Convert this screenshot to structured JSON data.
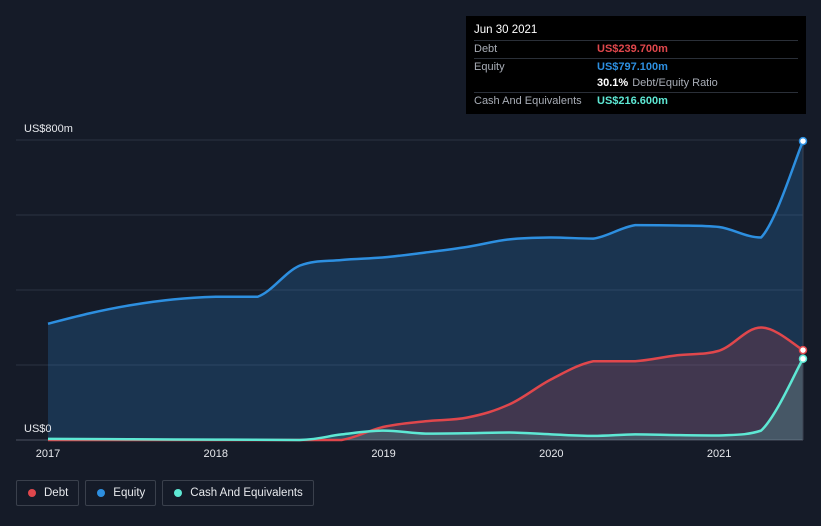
{
  "chart_data": {
    "type": "area",
    "y_unit_labels": {
      "top": "US$800m",
      "bottom": "US$0"
    },
    "ylim": [
      0,
      800
    ],
    "xlim": [
      2017,
      2021.5
    ],
    "x_ticks": [
      "2017",
      "2018",
      "2019",
      "2020",
      "2021"
    ],
    "x_tick_values": [
      2017,
      2018,
      2019,
      2020,
      2021
    ],
    "series": [
      {
        "name": "Equity",
        "color": "#2d8fe0",
        "points": [
          [
            2017,
            310
          ],
          [
            2017.25,
            338
          ],
          [
            2017.5,
            360
          ],
          [
            2017.75,
            375
          ],
          [
            2018,
            382
          ],
          [
            2018.25,
            382
          ],
          [
            2018.5,
            465
          ],
          [
            2018.75,
            480
          ],
          [
            2019,
            487
          ],
          [
            2019.25,
            500
          ],
          [
            2019.5,
            515
          ],
          [
            2019.75,
            535
          ],
          [
            2020,
            540
          ],
          [
            2020.25,
            537
          ],
          [
            2020.5,
            573
          ],
          [
            2020.75,
            572
          ],
          [
            2021,
            568
          ],
          [
            2021.25,
            540
          ],
          [
            2021.5,
            797.1
          ]
        ]
      },
      {
        "name": "Debt",
        "color": "#e0474c",
        "points": [
          [
            2017,
            0
          ],
          [
            2018,
            0
          ],
          [
            2018.5,
            0
          ],
          [
            2018.75,
            0
          ],
          [
            2019,
            35
          ],
          [
            2019.25,
            50
          ],
          [
            2019.5,
            60
          ],
          [
            2019.75,
            95
          ],
          [
            2020,
            162
          ],
          [
            2020.25,
            210
          ],
          [
            2020.5,
            210
          ],
          [
            2020.75,
            226
          ],
          [
            2021,
            238
          ],
          [
            2021.25,
            300
          ],
          [
            2021.5,
            239.7
          ]
        ]
      },
      {
        "name": "Cash And Equivalents",
        "color": "#5ee8d4",
        "points": [
          [
            2017,
            3
          ],
          [
            2017.5,
            2
          ],
          [
            2018,
            1
          ],
          [
            2018.5,
            0
          ],
          [
            2018.75,
            15
          ],
          [
            2019,
            25
          ],
          [
            2019.25,
            17
          ],
          [
            2019.5,
            18
          ],
          [
            2019.75,
            20
          ],
          [
            2020,
            15
          ],
          [
            2020.25,
            11
          ],
          [
            2020.5,
            15
          ],
          [
            2020.75,
            13
          ],
          [
            2021,
            12
          ],
          [
            2021.25,
            25
          ],
          [
            2021.5,
            216.6
          ]
        ]
      }
    ],
    "tooltip": {
      "date": "Jun 30 2021",
      "rows": [
        {
          "label": "Debt",
          "value": "US$239.700m",
          "color": "#e0474c"
        },
        {
          "label": "Equity",
          "value": "US$797.100m",
          "color": "#2d8fe0"
        },
        {
          "ratio_pct": "30.1%",
          "ratio_label": "Debt/Equity Ratio"
        },
        {
          "label": "Cash And Equivalents",
          "value": "US$216.600m",
          "color": "#5ee8d4"
        }
      ]
    },
    "legend": [
      {
        "name": "Debt",
        "color": "#e0474c"
      },
      {
        "name": "Equity",
        "color": "#2d8fe0"
      },
      {
        "name": "Cash And Equivalents",
        "color": "#5ee8d4"
      }
    ]
  }
}
